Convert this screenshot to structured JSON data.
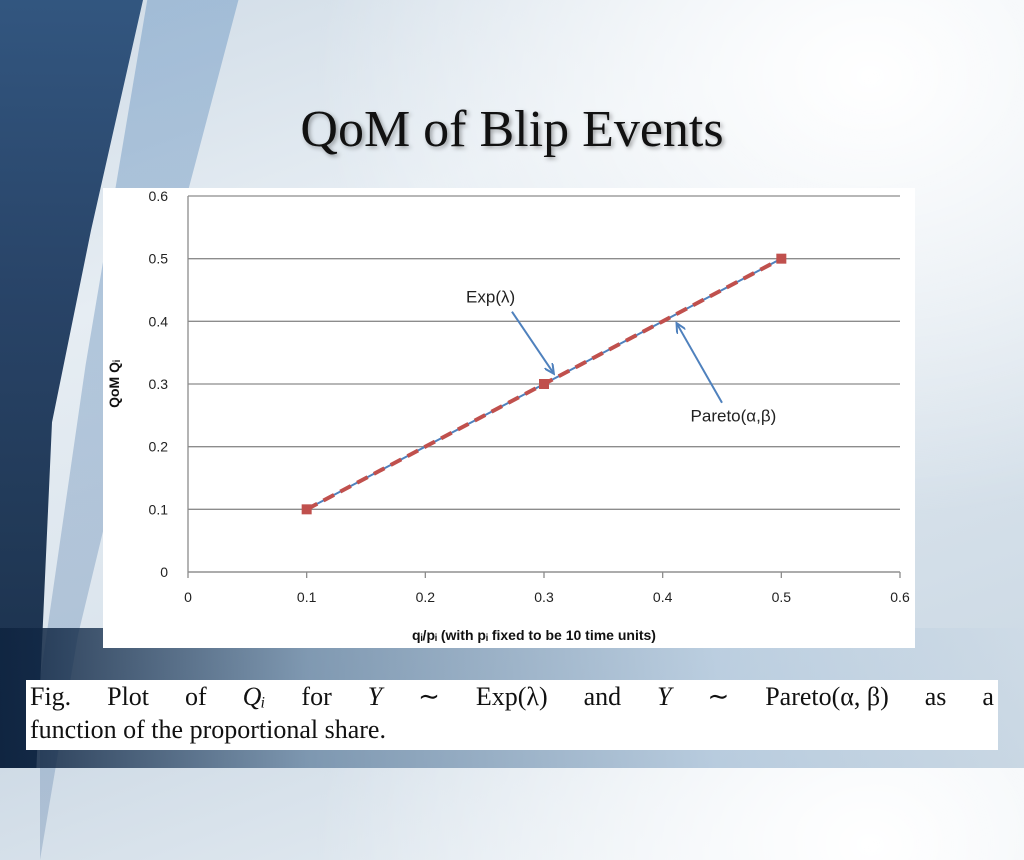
{
  "slide": {
    "title": "QoM of Blip Events"
  },
  "caption": {
    "words_row1": [
      "Fig.",
      "Plot",
      "of",
      "Qᵢ",
      "for",
      "Y",
      "∼",
      "Exp(λ)",
      "and",
      "Y",
      "∼",
      "Pareto(α, β)",
      "as",
      "a"
    ],
    "row2": "function of the proportional share."
  },
  "chart_data": {
    "type": "line",
    "xlabel": "qᵢ/pᵢ (with pᵢ fixed to be 10 time units)",
    "ylabel": "QoM Qᵢ",
    "xlim": [
      0,
      0.6
    ],
    "ylim": [
      0,
      0.6
    ],
    "x_ticks": [
      "0",
      "0.1",
      "0.2",
      "0.3",
      "0.4",
      "0.5",
      "0.6"
    ],
    "y_ticks": [
      "0",
      "0.1",
      "0.2",
      "0.3",
      "0.4",
      "0.5",
      "0.6"
    ],
    "grid": "horizontal",
    "series": [
      {
        "name": "Exp(λ)",
        "x": [
          0.1,
          0.2,
          0.3,
          0.4,
          0.5
        ],
        "y": [
          0.1,
          0.2,
          0.3,
          0.4,
          0.5
        ],
        "color": "#4f81bd",
        "style": "solid"
      },
      {
        "name": "Pareto(α,β)",
        "x": [
          0.1,
          0.2,
          0.3,
          0.4,
          0.5
        ],
        "y": [
          0.1,
          0.2,
          0.3,
          0.4,
          0.5
        ],
        "color": "#c0504d",
        "style": "dashed",
        "markers": "square"
      }
    ],
    "annotations": [
      {
        "text": "Exp(λ)",
        "points_to": [
          0.31,
          0.31
        ]
      },
      {
        "text": "Pareto(α,β)",
        "points_to": [
          0.41,
          0.41
        ]
      }
    ]
  }
}
